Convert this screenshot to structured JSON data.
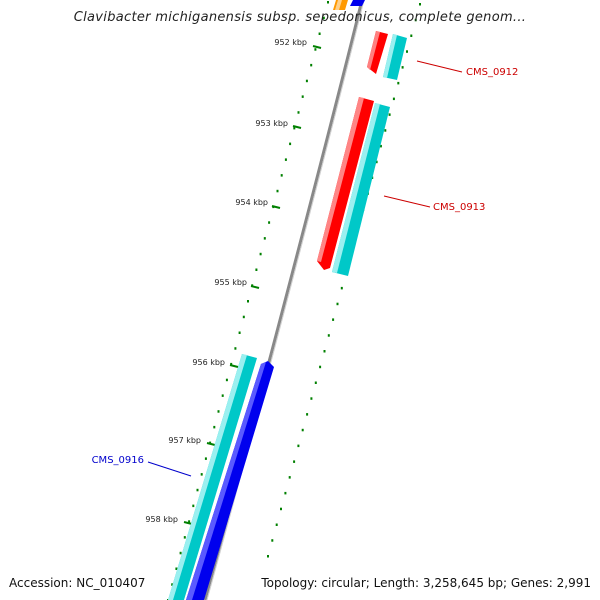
{
  "title": "Clavibacter michiganensis subsp. sepedonicus, complete genom...",
  "footer": {
    "accession": "Accession: NC_010407",
    "summary": "Topology: circular; Length: 3,258,645 bp; Genes: 2,991"
  },
  "colors": {
    "forward_gene": "#ff0000",
    "reverse_gene": "#00cccc",
    "blue_gene": "#0000ee",
    "orange_gene": "#ff9900",
    "tick": "#008000",
    "backbone": "#888888"
  },
  "ticks": [
    {
      "label": "952 kbp"
    },
    {
      "label": "953 kbp"
    },
    {
      "label": "954 kbp"
    },
    {
      "label": "955 kbp"
    },
    {
      "label": "956 kbp"
    },
    {
      "label": "957 kbp"
    },
    {
      "label": "958 kbp"
    }
  ],
  "gene_labels": [
    {
      "name": "CMS_0912",
      "color": "#cc0000"
    },
    {
      "name": "CMS_0913",
      "color": "#cc0000"
    },
    {
      "name": "CMS_0916",
      "color": "#0000cc"
    }
  ]
}
